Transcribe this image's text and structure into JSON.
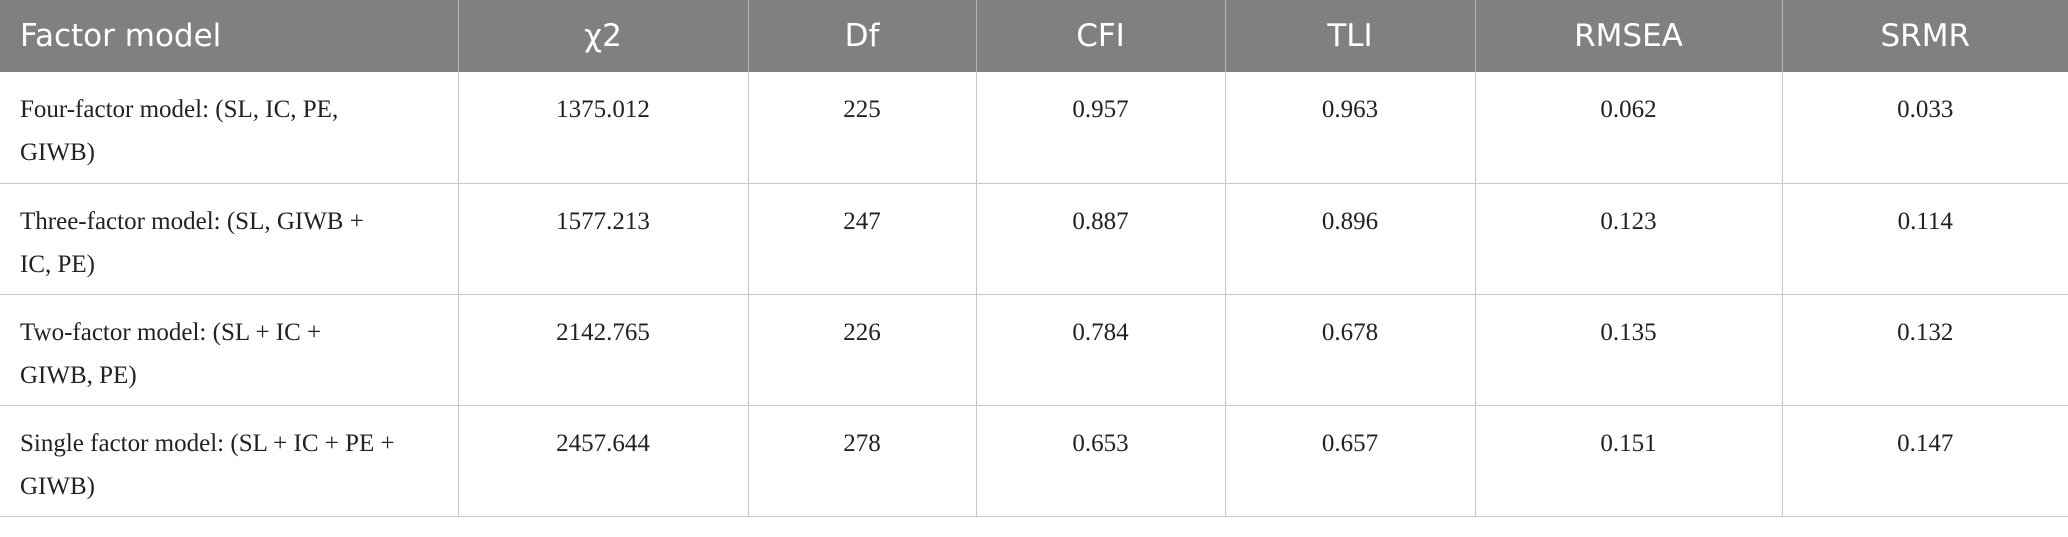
{
  "table": {
    "header": [
      "Factor model",
      "χ2",
      "Df",
      "CFI",
      "TLI",
      "RMSEA",
      "SRMR"
    ],
    "rows": [
      [
        "Four-factor model: (SL, IC, PE, GIWB)",
        "1375.012",
        "225",
        "0.957",
        "0.963",
        "0.062",
        "0.033"
      ],
      [
        "Three-factor model: (SL, GIWB + IC, PE)",
        "1577.213",
        "247",
        "0.887",
        "0.896",
        "0.123",
        "0.114"
      ],
      [
        "Two-factor model: (SL + IC + GIWB, PE)",
        "2142.765",
        "226",
        "0.784",
        "0.678",
        "0.135",
        "0.132"
      ],
      [
        "Single factor model: (SL + IC + PE + GIWB)",
        "2457.644",
        "278",
        "0.653",
        "0.657",
        "0.151",
        "0.147"
      ]
    ]
  }
}
